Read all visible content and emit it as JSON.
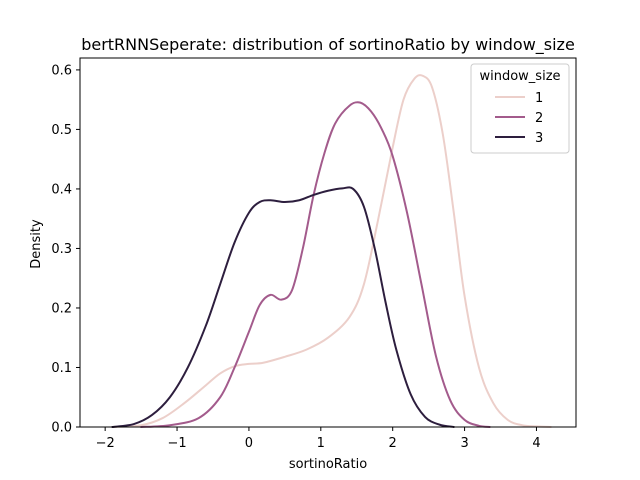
{
  "chart_data": {
    "type": "line",
    "title": "bertRNNSeperate: distribution of sortinoRatio by window_size",
    "xlabel": "sortinoRatio",
    "ylabel": "Density",
    "xlim": [
      -2.35,
      4.55
    ],
    "ylim": [
      0,
      0.62
    ],
    "xticks": [
      -2,
      -1,
      0,
      1,
      2,
      3,
      4
    ],
    "xtick_labels": [
      "−2",
      "−1",
      "0",
      "1",
      "2",
      "3",
      "4"
    ],
    "yticks": [
      0.0,
      0.1,
      0.2,
      0.3,
      0.4,
      0.5,
      0.6
    ],
    "ytick_labels": [
      "0.0",
      "0.1",
      "0.2",
      "0.3",
      "0.4",
      "0.5",
      "0.6"
    ],
    "grid": false,
    "legend": {
      "title": "window_size",
      "placement": "upper right"
    },
    "series": [
      {
        "name": "1",
        "color": "#eccfca",
        "x": [
          -1.9,
          -1.5,
          -1.2,
          -0.9,
          -0.6,
          -0.4,
          -0.2,
          0.0,
          0.2,
          0.5,
          0.8,
          1.1,
          1.4,
          1.6,
          1.8,
          2.0,
          2.15,
          2.3,
          2.42,
          2.55,
          2.7,
          2.85,
          3.0,
          3.2,
          3.4,
          3.6,
          3.8,
          4.0,
          4.2
        ],
        "y": [
          0.0,
          0.003,
          0.015,
          0.04,
          0.07,
          0.09,
          0.102,
          0.106,
          0.108,
          0.118,
          0.13,
          0.15,
          0.185,
          0.24,
          0.35,
          0.47,
          0.55,
          0.585,
          0.59,
          0.57,
          0.49,
          0.36,
          0.22,
          0.1,
          0.04,
          0.012,
          0.003,
          0.001,
          0.0
        ]
      },
      {
        "name": "2",
        "color": "#a35b8c",
        "x": [
          -1.5,
          -1.1,
          -0.7,
          -0.4,
          -0.2,
          0.0,
          0.15,
          0.3,
          0.45,
          0.6,
          0.75,
          0.9,
          1.05,
          1.2,
          1.4,
          1.55,
          1.7,
          1.85,
          2.0,
          2.2,
          2.4,
          2.6,
          2.8,
          3.0,
          3.2,
          3.35
        ],
        "y": [
          0.0,
          0.003,
          0.015,
          0.05,
          0.1,
          0.16,
          0.205,
          0.222,
          0.214,
          0.23,
          0.3,
          0.39,
          0.46,
          0.51,
          0.54,
          0.545,
          0.53,
          0.5,
          0.455,
          0.36,
          0.24,
          0.12,
          0.045,
          0.012,
          0.002,
          0.0
        ]
      },
      {
        "name": "3",
        "color": "#2d1e3e",
        "x": [
          -1.9,
          -1.6,
          -1.35,
          -1.1,
          -0.85,
          -0.6,
          -0.4,
          -0.2,
          0.0,
          0.15,
          0.3,
          0.5,
          0.7,
          0.9,
          1.1,
          1.3,
          1.45,
          1.6,
          1.75,
          1.9,
          2.05,
          2.25,
          2.45,
          2.65,
          2.85
        ],
        "y": [
          0.0,
          0.005,
          0.02,
          0.05,
          0.1,
          0.17,
          0.24,
          0.31,
          0.36,
          0.378,
          0.381,
          0.378,
          0.381,
          0.39,
          0.397,
          0.401,
          0.4,
          0.37,
          0.3,
          0.21,
          0.13,
          0.055,
          0.017,
          0.004,
          0.0
        ]
      }
    ]
  }
}
